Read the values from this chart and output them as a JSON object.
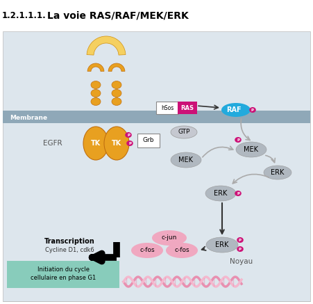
{
  "title_number": "1.2.1.1.1.",
  "title_text": "La voie RAS/RAF/MEK/ERK",
  "bg_color": "#dde6ed",
  "membrane_color": "#8fa8b8",
  "membrane_label": "Membrane",
  "egfr_label": "EGFR",
  "receptor_color": "#e8a020",
  "tk_color": "#e8a020",
  "ras_color": "#cc1177",
  "raf_color": "#22aadd",
  "mek_color": "#b0b8c0",
  "erk_color": "#b0b8c0",
  "p_color": "#cc1177",
  "cfos_color": "#f0a8c0",
  "cjun_color": "#f0a8c0",
  "teal_box_color": "#88ccbb",
  "dna_color": "#f0a8c0",
  "noyau_label": "Noyau",
  "cascade_arrow_color": "#aaaaaa",
  "dark_arrow_color": "#333333"
}
